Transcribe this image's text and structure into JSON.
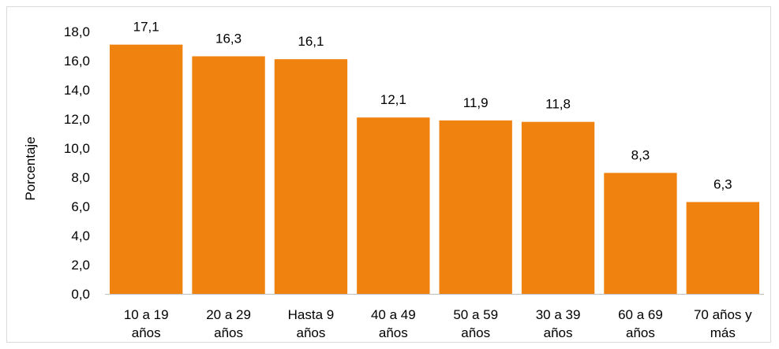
{
  "chart_data": {
    "type": "bar",
    "categories": [
      [
        "10 a 19",
        "años"
      ],
      [
        "20 a 29",
        "años"
      ],
      [
        "Hasta 9",
        "años"
      ],
      [
        "40 a 49",
        "años"
      ],
      [
        "50 a 59",
        "años"
      ],
      [
        "30 a 39",
        "años"
      ],
      [
        "60 a 69",
        "años"
      ],
      [
        "70 años y",
        "más"
      ]
    ],
    "values": [
      17.1,
      16.3,
      16.1,
      12.1,
      11.9,
      11.8,
      8.3,
      6.3
    ],
    "data_labels": [
      "17,1",
      "16,3",
      "16,1",
      "12,1",
      "11,9",
      "11,8",
      "8,3",
      "6,3"
    ],
    "title": "",
    "xlabel": "",
    "ylabel": "Porcentaje",
    "ylim": [
      0,
      18
    ],
    "yticks": [
      0,
      2,
      4,
      6,
      8,
      10,
      12,
      14,
      16,
      18
    ],
    "ytick_labels": [
      "0,0",
      "2,0",
      "4,0",
      "6,0",
      "8,0",
      "10,0",
      "12,0",
      "14,0",
      "16,0",
      "18,0"
    ],
    "grid": false,
    "legend": "none",
    "bar_color": "#F0820F"
  }
}
